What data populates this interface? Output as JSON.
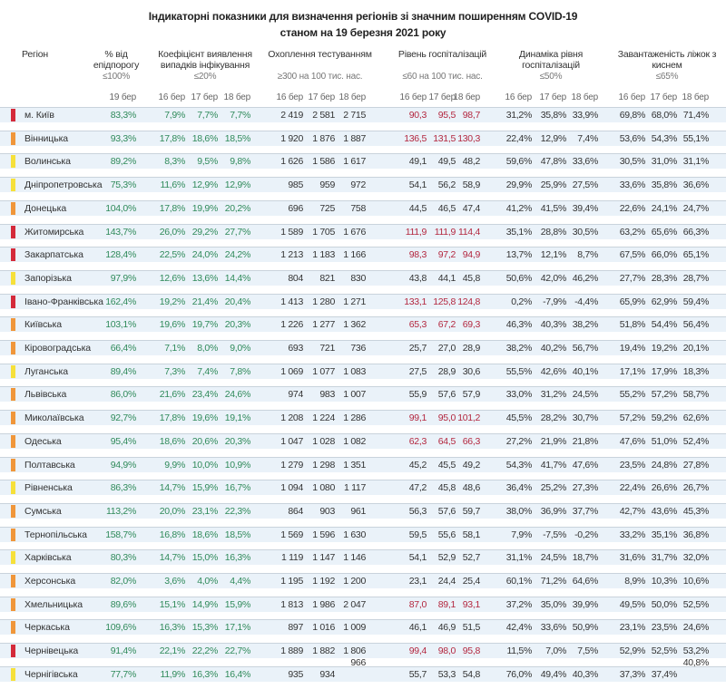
{
  "title": {
    "line1": "Індикаторні показники для визначення регіонів зі значним поширенням COVID-19",
    "line2": "станом на 19 березня 2021 року"
  },
  "headers": {
    "region": "Регіон",
    "pct": "% від епідпорогу",
    "pct_norm": "≤100%",
    "coef": "Коефіцієнт виявлення випадків інфікування",
    "coef_norm": "≤20%",
    "tests": "Охоплення тестуванням",
    "tests_norm": "≥300 на 100 тис. нас.",
    "hosp": "Рівень госпіталізацій",
    "hosp_norm": "≤60 на 100 тис. нас.",
    "dyn": "Динаміка рівня госпіталізацій",
    "dyn_norm": "≤50%",
    "beds": "Завантаженість ліжок з киснем",
    "beds_norm": "≤65%",
    "d19": "19 бер",
    "d16": "16 бер",
    "d17": "17 бер",
    "d18": "18 бер"
  },
  "colors": {
    "red": "#d42a3a",
    "orange": "#f0963a",
    "yellow": "#f6e03a",
    "ok_text": "#2f8a5a",
    "alert_text": "#b3273f"
  },
  "rows": [
    {
      "name": "м. Київ",
      "level": "red",
      "pct": "83,3%",
      "coef": [
        "7,9%",
        "7,7%",
        "7,7%"
      ],
      "tests": [
        "2 419",
        "2 581",
        "2 715"
      ],
      "hosp": [
        "90,3",
        "95,5",
        "98,7"
      ],
      "dyn": [
        "31,2%",
        "35,8%",
        "33,9%"
      ],
      "beds": [
        "69,8%",
        "68,0%",
        "71,4%"
      ]
    },
    {
      "name": "Вінницька",
      "level": "orange",
      "pct": "93,3%",
      "coef": [
        "17,8%",
        "18,6%",
        "18,5%"
      ],
      "tests": [
        "1 920",
        "1 876",
        "1 887"
      ],
      "hosp": [
        "136,5",
        "131,5",
        "130,3"
      ],
      "dyn": [
        "22,4%",
        "12,9%",
        "7,4%"
      ],
      "beds": [
        "53,6%",
        "54,3%",
        "55,1%"
      ]
    },
    {
      "name": "Волинська",
      "level": "yellow",
      "pct": "89,2%",
      "coef": [
        "8,3%",
        "9,5%",
        "9,8%"
      ],
      "tests": [
        "1 626",
        "1 586",
        "1 617"
      ],
      "hosp": [
        "49,1",
        "49,5",
        "48,2"
      ],
      "dyn": [
        "59,6%",
        "47,8%",
        "33,6%"
      ],
      "beds": [
        "30,5%",
        "31,0%",
        "31,1%"
      ]
    },
    {
      "name": "Дніпропетровська",
      "level": "yellow",
      "pct": "75,3%",
      "coef": [
        "11,6%",
        "12,9%",
        "12,9%"
      ],
      "tests": [
        "985",
        "959",
        "972"
      ],
      "hosp": [
        "54,1",
        "56,2",
        "58,9"
      ],
      "dyn": [
        "29,9%",
        "25,9%",
        "27,5%"
      ],
      "beds": [
        "33,6%",
        "35,8%",
        "36,6%"
      ]
    },
    {
      "name": "Донецька",
      "level": "orange",
      "pct": "104,0%",
      "coef": [
        "17,8%",
        "19,9%",
        "20,2%"
      ],
      "tests": [
        "696",
        "725",
        "758"
      ],
      "hosp": [
        "44,5",
        "46,5",
        "47,4"
      ],
      "dyn": [
        "41,2%",
        "41,5%",
        "39,4%"
      ],
      "beds": [
        "22,6%",
        "24,1%",
        "24,7%"
      ]
    },
    {
      "name": "Житомирська",
      "level": "red",
      "pct": "143,7%",
      "coef": [
        "26,0%",
        "29,2%",
        "27,7%"
      ],
      "tests": [
        "1 589",
        "1 705",
        "1 676"
      ],
      "hosp": [
        "111,9",
        "111,9",
        "114,4"
      ],
      "dyn": [
        "35,1%",
        "28,8%",
        "30,5%"
      ],
      "beds": [
        "63,2%",
        "65,6%",
        "66,3%"
      ]
    },
    {
      "name": "Закарпатська",
      "level": "red",
      "pct": "128,4%",
      "coef": [
        "22,5%",
        "24,0%",
        "24,2%"
      ],
      "tests": [
        "1 213",
        "1 183",
        "1 166"
      ],
      "hosp": [
        "98,3",
        "97,2",
        "94,9"
      ],
      "dyn": [
        "13,7%",
        "12,1%",
        "8,7%"
      ],
      "beds": [
        "67,5%",
        "66,0%",
        "65,1%"
      ]
    },
    {
      "name": "Запорізька",
      "level": "yellow",
      "pct": "97,9%",
      "coef": [
        "12,6%",
        "13,6%",
        "14,4%"
      ],
      "tests": [
        "804",
        "821",
        "830"
      ],
      "hosp": [
        "43,8",
        "44,1",
        "45,8"
      ],
      "dyn": [
        "50,6%",
        "42,0%",
        "46,2%"
      ],
      "beds": [
        "27,7%",
        "28,3%",
        "28,7%"
      ]
    },
    {
      "name": "Івано-Франківська",
      "level": "red",
      "pct": "162,4%",
      "coef": [
        "19,2%",
        "21,4%",
        "20,4%"
      ],
      "tests": [
        "1 413",
        "1 280",
        "1 271"
      ],
      "hosp": [
        "133,1",
        "125,8",
        "124,8"
      ],
      "dyn": [
        "0,2%",
        "-7,9%",
        "-4,4%"
      ],
      "beds": [
        "65,9%",
        "62,9%",
        "59,4%"
      ]
    },
    {
      "name": "Київська",
      "level": "orange",
      "pct": "103,1%",
      "coef": [
        "19,6%",
        "19,7%",
        "20,3%"
      ],
      "tests": [
        "1 226",
        "1 277",
        "1 362"
      ],
      "hosp": [
        "65,3",
        "67,2",
        "69,3"
      ],
      "dyn": [
        "46,3%",
        "40,3%",
        "38,2%"
      ],
      "beds": [
        "51,8%",
        "54,4%",
        "56,4%"
      ]
    },
    {
      "name": "Кіровоградська",
      "level": "orange",
      "pct": "66,4%",
      "coef": [
        "7,1%",
        "8,0%",
        "9,0%"
      ],
      "tests": [
        "693",
        "721",
        "736"
      ],
      "hosp": [
        "25,7",
        "27,0",
        "28,9"
      ],
      "dyn": [
        "38,2%",
        "40,2%",
        "56,7%"
      ],
      "beds": [
        "19,4%",
        "19,2%",
        "20,1%"
      ]
    },
    {
      "name": "Луганська",
      "level": "yellow",
      "pct": "89,4%",
      "coef": [
        "7,3%",
        "7,4%",
        "7,8%"
      ],
      "tests": [
        "1 069",
        "1 077",
        "1 083"
      ],
      "hosp": [
        "27,5",
        "28,9",
        "30,6"
      ],
      "dyn": [
        "55,5%",
        "42,6%",
        "40,1%"
      ],
      "beds": [
        "17,1%",
        "17,9%",
        "18,3%"
      ]
    },
    {
      "name": "Львівська",
      "level": "orange",
      "pct": "86,0%",
      "coef": [
        "21,6%",
        "23,4%",
        "24,6%"
      ],
      "tests": [
        "974",
        "983",
        "1 007"
      ],
      "hosp": [
        "55,9",
        "57,6",
        "57,9"
      ],
      "dyn": [
        "33,0%",
        "31,2%",
        "24,5%"
      ],
      "beds": [
        "55,2%",
        "57,2%",
        "58,7%"
      ]
    },
    {
      "name": "Миколаївська",
      "level": "orange",
      "pct": "92,7%",
      "coef": [
        "17,8%",
        "19,6%",
        "19,1%"
      ],
      "tests": [
        "1 208",
        "1 224",
        "1 286"
      ],
      "hosp": [
        "99,1",
        "95,0",
        "101,2"
      ],
      "dyn": [
        "45,5%",
        "28,2%",
        "30,7%"
      ],
      "beds": [
        "57,2%",
        "59,2%",
        "62,6%"
      ]
    },
    {
      "name": "Одеська",
      "level": "orange",
      "pct": "95,4%",
      "coef": [
        "18,6%",
        "20,6%",
        "20,3%"
      ],
      "tests": [
        "1 047",
        "1 028",
        "1 082"
      ],
      "hosp": [
        "62,3",
        "64,5",
        "66,3"
      ],
      "dyn": [
        "27,2%",
        "21,9%",
        "21,8%"
      ],
      "beds": [
        "47,6%",
        "51,0%",
        "52,4%"
      ]
    },
    {
      "name": "Полтавська",
      "level": "orange",
      "pct": "94,9%",
      "coef": [
        "9,9%",
        "10,0%",
        "10,9%"
      ],
      "tests": [
        "1 279",
        "1 298",
        "1 351"
      ],
      "hosp": [
        "45,2",
        "45,5",
        "49,2"
      ],
      "dyn": [
        "54,3%",
        "41,7%",
        "47,6%"
      ],
      "beds": [
        "23,5%",
        "24,8%",
        "27,8%"
      ]
    },
    {
      "name": "Рівненська",
      "level": "yellow",
      "pct": "86,3%",
      "coef": [
        "14,7%",
        "15,9%",
        "16,7%"
      ],
      "tests": [
        "1 094",
        "1 080",
        "1 117"
      ],
      "hosp": [
        "47,2",
        "45,8",
        "48,6"
      ],
      "dyn": [
        "36,4%",
        "25,2%",
        "27,3%"
      ],
      "beds": [
        "22,4%",
        "26,6%",
        "26,7%"
      ]
    },
    {
      "name": "Сумська",
      "level": "orange",
      "pct": "113,2%",
      "coef": [
        "20,0%",
        "23,1%",
        "22,3%"
      ],
      "tests": [
        "864",
        "903",
        "961"
      ],
      "hosp": [
        "56,3",
        "57,6",
        "59,7"
      ],
      "dyn": [
        "38,0%",
        "36,9%",
        "37,7%"
      ],
      "beds": [
        "42,7%",
        "43,6%",
        "45,3%"
      ]
    },
    {
      "name": "Тернопільська",
      "level": "orange",
      "pct": "158,7%",
      "coef": [
        "16,8%",
        "18,6%",
        "18,5%"
      ],
      "tests": [
        "1 569",
        "1 596",
        "1 630"
      ],
      "hosp": [
        "59,5",
        "55,6",
        "58,1"
      ],
      "dyn": [
        "7,9%",
        "-7,5%",
        "-0,2%"
      ],
      "beds": [
        "33,2%",
        "35,1%",
        "36,8%"
      ]
    },
    {
      "name": "Харківська",
      "level": "yellow",
      "pct": "80,3%",
      "coef": [
        "14,7%",
        "15,0%",
        "16,3%"
      ],
      "tests": [
        "1 119",
        "1 147",
        "1 146"
      ],
      "hosp": [
        "54,1",
        "52,9",
        "52,7"
      ],
      "dyn": [
        "31,1%",
        "24,5%",
        "18,7%"
      ],
      "beds": [
        "31,6%",
        "31,7%",
        "32,0%"
      ]
    },
    {
      "name": "Херсонська",
      "level": "orange",
      "pct": "82,0%",
      "coef": [
        "3,6%",
        "4,0%",
        "4,4%"
      ],
      "tests": [
        "1 195",
        "1 192",
        "1 200"
      ],
      "hosp": [
        "23,1",
        "24,4",
        "25,4"
      ],
      "dyn": [
        "60,1%",
        "71,2%",
        "64,6%"
      ],
      "beds": [
        "8,9%",
        "10,3%",
        "10,6%"
      ]
    },
    {
      "name": "Хмельницька",
      "level": "orange",
      "pct": "89,6%",
      "coef": [
        "15,1%",
        "14,9%",
        "15,9%"
      ],
      "tests": [
        "1 813",
        "1 986",
        "2 047"
      ],
      "hosp": [
        "87,0",
        "89,1",
        "93,1"
      ],
      "dyn": [
        "37,2%",
        "35,0%",
        "39,9%"
      ],
      "beds": [
        "49,5%",
        "50,0%",
        "52,5%"
      ]
    },
    {
      "name": "Черкаська",
      "level": "orange",
      "pct": "109,6%",
      "coef": [
        "16,3%",
        "15,3%",
        "17,1%"
      ],
      "tests": [
        "897",
        "1 016",
        "1 009"
      ],
      "hosp": [
        "46,1",
        "46,9",
        "51,5"
      ],
      "dyn": [
        "42,4%",
        "33,6%",
        "50,9%"
      ],
      "beds": [
        "23,1%",
        "23,5%",
        "24,6%"
      ]
    },
    {
      "name": "Чернівецька",
      "level": "red",
      "pct": "91,4%",
      "coef": [
        "22,1%",
        "22,2%",
        "22,7%"
      ],
      "tests": [
        "1 889",
        "1 882",
        "1 806"
      ],
      "hosp": [
        "99,4",
        "98,0",
        "95,8"
      ],
      "dyn": [
        "11,5%",
        "7,0%",
        "7,5%"
      ],
      "beds": [
        "52,9%",
        "52,5%",
        "53,2%"
      ]
    },
    {
      "name": "Чернігівська",
      "level": "yellow",
      "pct": "77,7%",
      "coef": [
        "11,9%",
        "16,3%",
        "16,4%"
      ],
      "tests": [
        "935",
        "934",
        ""
      ],
      "hosp": [
        "55,7",
        "53,3",
        "54,8"
      ],
      "dyn": [
        "76,0%",
        "49,4%",
        "40,3%"
      ],
      "beds": [
        "37,3%",
        "37,4%",
        ""
      ]
    }
  ],
  "shifted_values": {
    "tests_18": "966",
    "beds_18": "40,8%"
  }
}
